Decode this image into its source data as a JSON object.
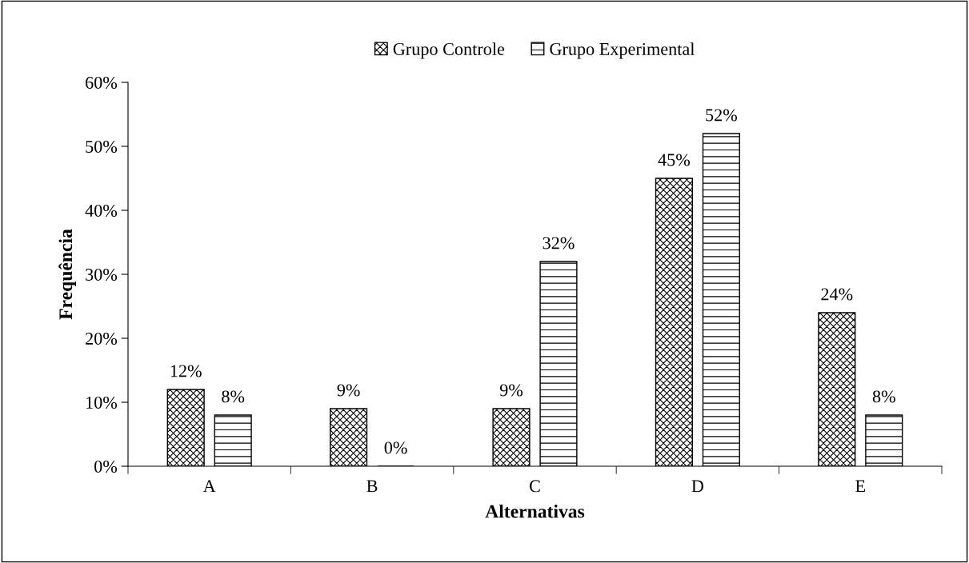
{
  "chart_data": {
    "type": "bar",
    "xlabel": "Alternativas",
    "ylabel": "Frequência",
    "categories": [
      "A",
      "B",
      "C",
      "D",
      "E"
    ],
    "series": [
      {
        "name": "Grupo Controle",
        "color": "#000000",
        "values": [
          12,
          9,
          9,
          45,
          24
        ],
        "value_labels": [
          "12%",
          "9%",
          "9%",
          "45%",
          "24%"
        ]
      },
      {
        "name": "Grupo Experimental",
        "color": "#000000",
        "values": [
          8,
          0,
          32,
          52,
          8
        ],
        "value_labels": [
          "8%",
          "0%",
          "32%",
          "52%",
          "8%"
        ]
      }
    ],
    "ylim": [
      0,
      60
    ],
    "yticks": [
      {
        "value": 0,
        "label": "0%"
      },
      {
        "value": 10,
        "label": "10%"
      },
      {
        "value": 20,
        "label": "20%"
      },
      {
        "value": 30,
        "label": "30%"
      },
      {
        "value": 40,
        "label": "40%"
      },
      {
        "value": 50,
        "label": "50%"
      },
      {
        "value": 60,
        "label": "60%"
      }
    ],
    "grid": false,
    "legend": "top"
  }
}
